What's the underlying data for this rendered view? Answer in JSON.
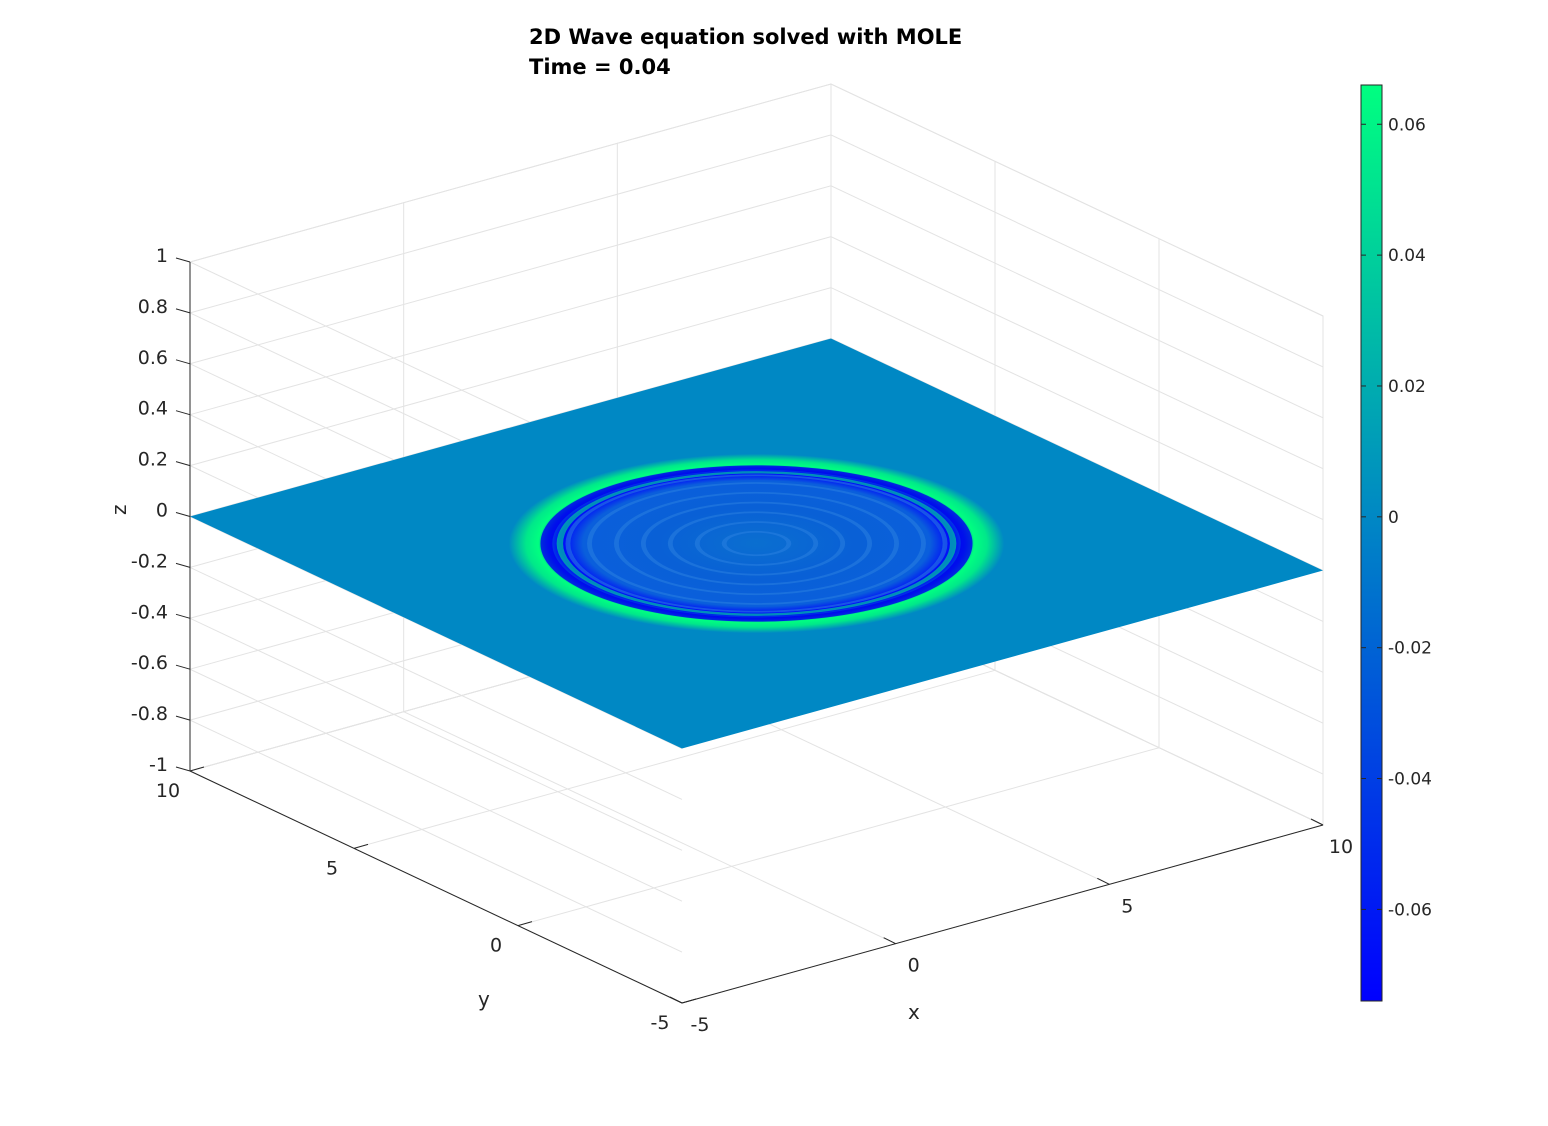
{
  "chart_data": {
    "type": "surface",
    "title": [
      "2D Wave equation solved with MOLE",
      "Time = 0.04"
    ],
    "xlabel": "x",
    "ylabel": "y",
    "zlabel": "z",
    "xlim": [
      -5,
      10
    ],
    "ylim": [
      -5,
      10
    ],
    "zlim": [
      -1,
      1
    ],
    "xticks": [
      -5,
      0,
      5,
      10
    ],
    "xtick_labels": [
      "-5",
      "0",
      "5",
      "10"
    ],
    "yticks": [
      -5,
      0,
      5,
      10
    ],
    "ytick_labels": [
      "-5",
      "0",
      "5",
      "10"
    ],
    "zticks": [
      -1,
      -0.8,
      -0.6,
      -0.4,
      -0.2,
      0,
      0.2,
      0.4,
      0.6,
      0.8,
      1
    ],
    "ztick_labels": [
      "-1",
      "-0.8",
      "-0.6",
      "-0.4",
      "-0.2",
      "0",
      "0.2",
      "0.4",
      "0.6",
      "0.8",
      "1"
    ],
    "grid": true,
    "surface": {
      "description_value": "circular wavefront centered near (2.5, 2.5)",
      "center": [
        2.5,
        2.5
      ],
      "outer_ring_radius": 4.6,
      "inner_trough_radius": 3.9,
      "peak_value": 0.066,
      "trough_value": -0.074,
      "baseline_value": 0
    },
    "colorbar": {
      "range": [
        -0.074,
        0.066
      ],
      "ticks": [
        -0.06,
        -0.04,
        -0.02,
        0,
        0.02,
        0.04,
        0.06
      ],
      "tick_labels": [
        "-0.06",
        "-0.04",
        "-0.02",
        "0",
        "0.02",
        "0.04",
        "0.06"
      ],
      "colors": [
        "#0000ff",
        "#0088c4",
        "#00ff80"
      ]
    }
  }
}
